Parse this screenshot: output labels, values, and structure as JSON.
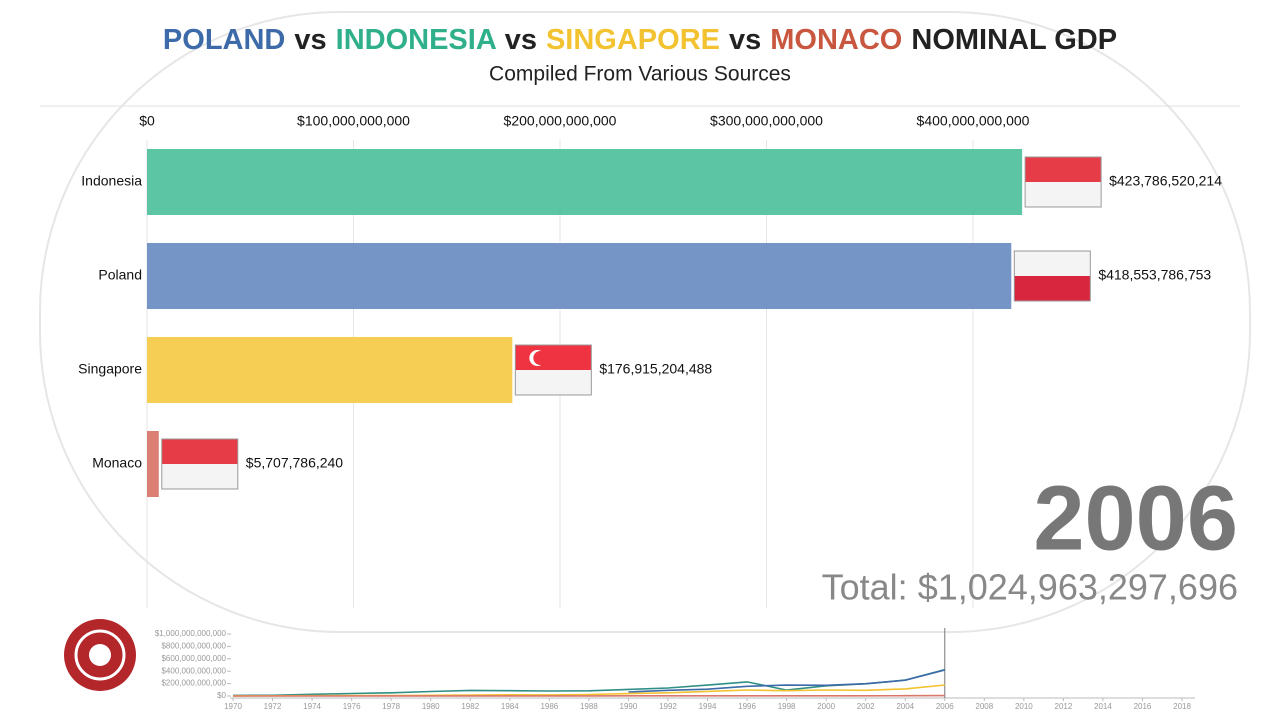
{
  "chart_data": [
    {
      "type": "bar",
      "orientation": "horizontal",
      "title_parts": [
        {
          "text": "POLAND",
          "color": "#3d6aa8"
        },
        {
          "text": "vs",
          "color": "#222222"
        },
        {
          "text": "INDONESIA",
          "color": "#2fb08a"
        },
        {
          "text": "vs",
          "color": "#222222"
        },
        {
          "text": "SINGAPORE",
          "color": "#f2c230"
        },
        {
          "text": "vs",
          "color": "#222222"
        },
        {
          "text": "MONACO",
          "color": "#c9573f"
        },
        {
          "text": "NOMINAL GDP",
          "color": "#222222"
        }
      ],
      "subtitle": "Compiled From Various Sources",
      "categories": [
        "Indonesia",
        "Poland",
        "Singapore",
        "Monaco"
      ],
      "values": [
        423786520214,
        418553786753,
        176915204488,
        5707786240
      ],
      "value_labels": [
        "$423,786,520,214",
        "$418,553,786,753",
        "$176,915,204,488",
        "$5,707,786,240"
      ],
      "colors": [
        "#52c29f",
        "#6f8fc4",
        "#f5cb4a",
        "#d9776b"
      ],
      "xlim": [
        0,
        500000000000
      ],
      "xticks": [
        {
          "value": 0,
          "label": "$0"
        },
        {
          "value": 100000000000,
          "label": "$100,000,000,000"
        },
        {
          "value": 200000000000,
          "label": "$200,000,000,000"
        },
        {
          "value": 300000000000,
          "label": "$300,000,000,000"
        },
        {
          "value": 400000000000,
          "label": "$400,000,000,000"
        }
      ],
      "grid": true,
      "year": "2006",
      "total_label": "Total: $1,024,963,297,696"
    },
    {
      "type": "line",
      "x": [
        1970,
        1972,
        1974,
        1976,
        1978,
        1980,
        1982,
        1984,
        1986,
        1988,
        1990,
        1992,
        1994,
        1996,
        1998,
        2000,
        2002,
        2004,
        2006
      ],
      "series": [
        {
          "color": "#2f8f86",
          "values": [
            9600000000.0,
            12000000000.0,
            28000000000.0,
            41000000000.0,
            52000000000.0,
            72000000000.0,
            90000000000.0,
            85000000000.0,
            80000000000.0,
            84000000000.0,
            106000000000.0,
            129000000000.0,
            176000000000.0,
            227000000000.0,
            95000000000.0,
            165000000000.0,
            196000000000.0,
            257000000000.0,
            423800000000.0
          ]
        },
        {
          "color": "#3d6aa8",
          "values": [
            null,
            null,
            null,
            null,
            null,
            null,
            null,
            null,
            null,
            null,
            65000000000.0,
            92000000000.0,
            110000000000.0,
            157000000000.0,
            175000000000.0,
            172000000000.0,
            198000000000.0,
            255000000000.0,
            418600000000.0
          ]
        },
        {
          "color": "#f2c230",
          "values": [
            1900000000.0,
            2700000000.0,
            5200000000.0,
            6400000000.0,
            8400000000.0,
            11900000000.0,
            16000000000.0,
            19900000000.0,
            18000000000.0,
            25000000000.0,
            38900000000.0,
            52000000000.0,
            74000000000.0,
            96000000000.0,
            85000000000.0,
            96000000000.0,
            92000000000.0,
            115000000000.0,
            176900000000.0
          ]
        },
        {
          "color": "#d9776b",
          "values": [
            300000000.0,
            400000000.0,
            600000000.0,
            700000000.0,
            900000000.0,
            1100000000.0,
            1200000000.0,
            1300000000.0,
            1500000000.0,
            2000000000.0,
            2500000000.0,
            2800000000.0,
            2700000000.0,
            3000000000.0,
            3000000000.0,
            3100000000.0,
            3500000000.0,
            4300000000.0,
            5700000000.0
          ]
        }
      ],
      "xlim": [
        1970,
        2019
      ],
      "ylim": [
        0,
        1000000000000
      ],
      "xticks": [
        1970,
        1972,
        1974,
        1976,
        1978,
        1980,
        1982,
        1984,
        1986,
        1988,
        1990,
        1992,
        1994,
        1996,
        1998,
        2000,
        2002,
        2004,
        2006,
        2008,
        2010,
        2012,
        2014,
        2016,
        2018
      ],
      "yticks": [
        {
          "value": 0,
          "label": "$0"
        },
        {
          "value": 200000000000,
          "label": "$200,000,000,000"
        },
        {
          "value": 400000000000,
          "label": "$400,000,000,000"
        },
        {
          "value": 600000000000,
          "label": "$600,000,000,000"
        },
        {
          "value": 800000000000,
          "label": "$800,000,000,000"
        },
        {
          "value": 1000000000000,
          "label": "$1,000,000,000,000"
        }
      ]
    }
  ]
}
